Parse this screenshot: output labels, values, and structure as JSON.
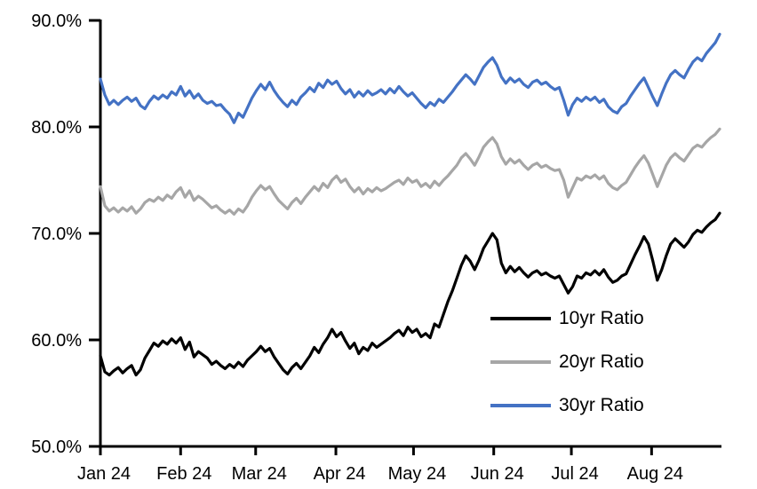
{
  "chart_data": {
    "type": "line",
    "title": "",
    "xlabel": "",
    "ylabel": "",
    "ylim": [
      50,
      90
    ],
    "y_tick_step": 10,
    "y_tick_labels": [
      "50.0%",
      "60.0%",
      "70.0%",
      "80.0%",
      "90.0%"
    ],
    "y_tick_values": [
      50,
      60,
      70,
      80,
      90
    ],
    "x_tick_labels": [
      "Jan 24",
      "Feb 24",
      "Mar 24",
      "Apr 24",
      "May 24",
      "Jun 24",
      "Jul 24",
      "Aug 24"
    ],
    "x_tick_day_offsets": [
      0,
      31,
      60,
      91,
      121,
      152,
      182,
      213
    ],
    "x_domain_days": [
      0,
      240
    ],
    "grid": false,
    "legend_position": "inside-right-bottom",
    "axis_color": "#000000",
    "series": [
      {
        "name": "10yr Ratio",
        "color": "#000000",
        "values": [
          58.5,
          57.0,
          56.7,
          57.1,
          57.4,
          56.9,
          57.3,
          57.6,
          56.7,
          57.2,
          58.3,
          59.0,
          59.7,
          59.4,
          59.9,
          59.6,
          60.1,
          59.7,
          60.2,
          59.1,
          59.8,
          58.4,
          58.9,
          58.6,
          58.3,
          57.7,
          58.0,
          57.6,
          57.3,
          57.7,
          57.4,
          57.9,
          57.5,
          58.1,
          58.5,
          58.9,
          59.4,
          58.9,
          59.2,
          58.4,
          57.8,
          57.2,
          56.8,
          57.4,
          57.8,
          57.3,
          57.9,
          58.5,
          59.3,
          58.8,
          59.6,
          60.2,
          61.0,
          60.3,
          60.7,
          59.9,
          59.2,
          59.7,
          58.7,
          59.3,
          59.0,
          59.7,
          59.3,
          59.6,
          59.9,
          60.2,
          60.6,
          60.9,
          60.4,
          61.2,
          60.7,
          61.0,
          60.3,
          60.6,
          60.2,
          61.5,
          61.2,
          62.4,
          63.6,
          64.6,
          65.8,
          67.0,
          67.9,
          67.4,
          66.6,
          67.5,
          68.6,
          69.3,
          70.0,
          69.4,
          67.2,
          66.3,
          66.9,
          66.4,
          66.8,
          66.3,
          65.9,
          66.3,
          66.5,
          66.1,
          66.3,
          66.0,
          65.8,
          66.0,
          65.2,
          64.4,
          65.0,
          66.0,
          65.8,
          66.3,
          66.1,
          66.5,
          66.1,
          66.6,
          65.9,
          65.4,
          65.6,
          66.0,
          66.2,
          67.1,
          68.0,
          68.8,
          69.7,
          69.0,
          67.4,
          65.6,
          66.6,
          67.9,
          69.0,
          69.5,
          69.1,
          68.7,
          69.2,
          69.9,
          70.3,
          70.1,
          70.6,
          71.0,
          71.3,
          71.9
        ]
      },
      {
        "name": "20yr Ratio",
        "color": "#A6A6A6",
        "values": [
          74.4,
          72.6,
          72.1,
          72.4,
          72.0,
          72.4,
          72.1,
          72.5,
          71.9,
          72.3,
          72.9,
          73.2,
          73.0,
          73.4,
          73.1,
          73.6,
          73.3,
          73.9,
          74.3,
          73.4,
          74.0,
          73.1,
          73.5,
          73.2,
          72.8,
          72.4,
          72.6,
          72.2,
          71.9,
          72.2,
          71.8,
          72.3,
          72.0,
          72.6,
          73.4,
          74.0,
          74.5,
          74.1,
          74.4,
          73.7,
          73.1,
          72.7,
          72.3,
          72.9,
          73.3,
          72.8,
          73.4,
          73.9,
          74.4,
          74.0,
          74.7,
          74.3,
          75.0,
          75.4,
          74.8,
          75.1,
          74.4,
          73.9,
          74.3,
          73.7,
          74.2,
          73.9,
          74.3,
          74.0,
          74.2,
          74.5,
          74.8,
          75.0,
          74.6,
          75.2,
          74.8,
          75.0,
          74.4,
          74.7,
          74.3,
          74.9,
          74.5,
          75.0,
          75.4,
          75.9,
          76.4,
          77.1,
          77.5,
          77.0,
          76.4,
          77.2,
          78.1,
          78.6,
          79.0,
          78.4,
          77.2,
          76.5,
          77.0,
          76.6,
          76.9,
          76.4,
          76.0,
          76.4,
          76.6,
          76.2,
          76.4,
          76.1,
          75.9,
          76.0,
          75.0,
          73.4,
          74.3,
          75.2,
          75.0,
          75.4,
          75.2,
          75.5,
          75.1,
          75.4,
          74.7,
          74.3,
          74.1,
          74.5,
          74.8,
          75.5,
          76.2,
          76.8,
          77.3,
          76.6,
          75.5,
          74.4,
          75.4,
          76.4,
          77.1,
          77.5,
          77.1,
          76.8,
          77.4,
          78.0,
          78.3,
          78.1,
          78.6,
          79.0,
          79.3,
          79.8
        ]
      },
      {
        "name": "30yr Ratio",
        "color": "#4472C4",
        "values": [
          84.5,
          83.0,
          82.1,
          82.5,
          82.1,
          82.5,
          82.8,
          82.4,
          82.7,
          82.0,
          81.7,
          82.4,
          82.9,
          82.6,
          83.0,
          82.7,
          83.3,
          83.0,
          83.8,
          82.9,
          83.4,
          82.7,
          83.1,
          82.5,
          82.2,
          82.4,
          82.0,
          82.1,
          81.6,
          81.2,
          80.4,
          81.3,
          80.9,
          81.8,
          82.7,
          83.4,
          84.0,
          83.5,
          84.2,
          83.4,
          82.8,
          82.3,
          81.9,
          82.5,
          82.1,
          82.8,
          83.2,
          83.7,
          83.3,
          84.1,
          83.7,
          84.4,
          84.0,
          84.3,
          83.6,
          83.1,
          83.5,
          82.8,
          83.3,
          82.9,
          83.4,
          83.0,
          83.2,
          83.5,
          83.1,
          83.6,
          83.2,
          83.8,
          83.3,
          82.9,
          83.2,
          82.7,
          82.2,
          81.8,
          82.3,
          82.0,
          82.6,
          82.3,
          82.8,
          83.3,
          83.9,
          84.4,
          84.9,
          84.5,
          84.0,
          84.8,
          85.6,
          86.1,
          86.5,
          85.8,
          84.7,
          84.1,
          84.6,
          84.2,
          84.5,
          84.0,
          83.7,
          84.2,
          84.4,
          84.0,
          84.2,
          83.8,
          83.5,
          83.7,
          82.5,
          81.1,
          82.1,
          82.7,
          82.4,
          82.8,
          82.5,
          82.8,
          82.3,
          82.6,
          81.9,
          81.5,
          81.3,
          81.9,
          82.2,
          82.9,
          83.5,
          84.1,
          84.6,
          83.7,
          82.8,
          82.0,
          83.1,
          84.1,
          84.9,
          85.3,
          84.9,
          84.6,
          85.4,
          86.1,
          86.5,
          86.2,
          86.9,
          87.4,
          87.9,
          88.7
        ]
      }
    ]
  }
}
